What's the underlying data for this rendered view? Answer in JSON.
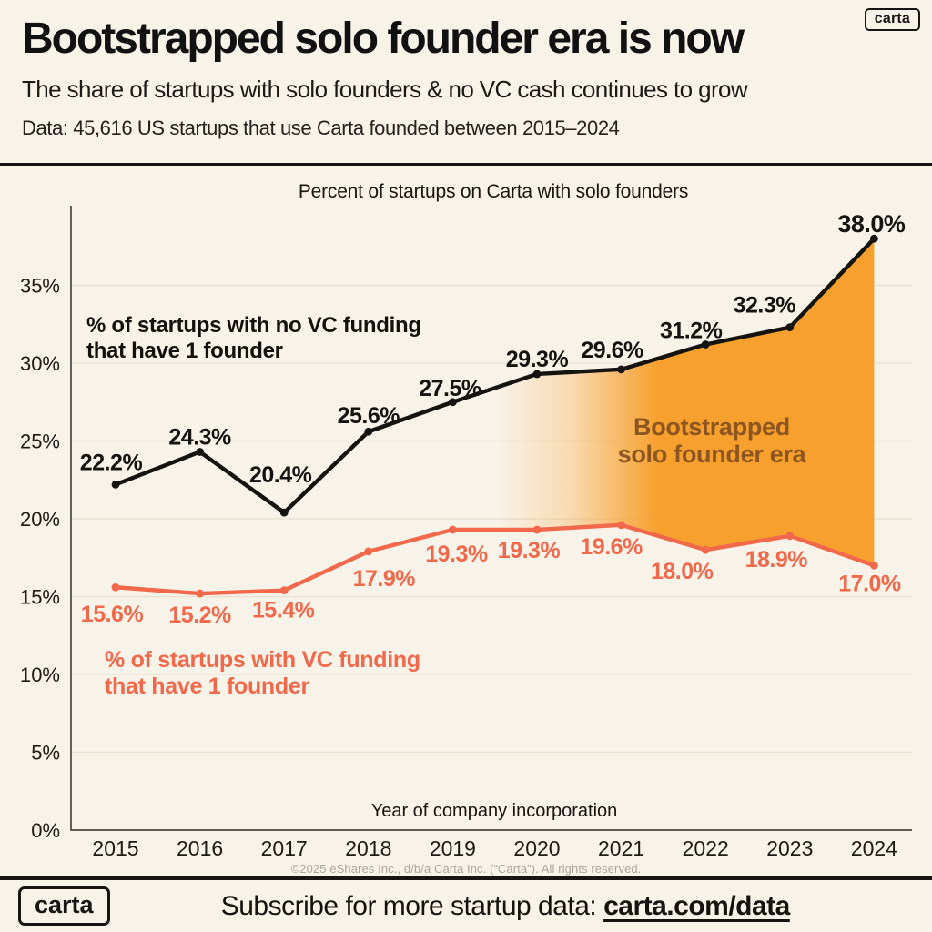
{
  "page": {
    "background": "#F8F3E9",
    "black": "#161511",
    "accent_orange": "#F2684B",
    "fill_orange": "#F7A02E",
    "era_text_color": "#8D5620"
  },
  "header": {
    "logo": "carta",
    "title": "Bootstrapped solo founder era is now",
    "subtitle": "The share of startups with solo founders & no VC cash continues to grow",
    "data_note": "Data: 45,616 US startups that use Carta founded between 2015–2024"
  },
  "chart_data": {
    "type": "line",
    "title": "Percent of startups on Carta with solo founders",
    "xlabel": "Year of company incorporation",
    "categories": [
      "2015",
      "2016",
      "2017",
      "2018",
      "2019",
      "2020",
      "2021",
      "2022",
      "2023",
      "2024"
    ],
    "series": [
      {
        "name": "% of startups with no VC funding that have 1 founder",
        "color": "#141310",
        "values": [
          22.2,
          24.3,
          20.4,
          25.6,
          27.5,
          29.3,
          29.6,
          31.2,
          32.3,
          38.0
        ],
        "labels": [
          "22.2%",
          "24.3%",
          "20.4%",
          "25.6%",
          "27.5%",
          "29.3%",
          "29.6%",
          "31.2%",
          "32.3%",
          "38.0%"
        ]
      },
      {
        "name": "% of startups with VC funding that have 1 founder",
        "color": "#F2684B",
        "values": [
          15.6,
          15.2,
          15.4,
          17.9,
          19.3,
          19.3,
          19.6,
          18.0,
          18.9,
          17.0
        ],
        "labels": [
          "15.6%",
          "15.2%",
          "15.4%",
          "17.9%",
          "19.3%",
          "19.3%",
          "19.6%",
          "18.0%",
          "18.9%",
          "17.0%"
        ]
      }
    ],
    "ylim": [
      0,
      40
    ],
    "yticks": {
      "values": [
        0,
        5,
        10,
        15,
        20,
        25,
        30,
        35
      ],
      "labels": [
        "0%",
        "5%",
        "10%",
        "15%",
        "20%",
        "25%",
        "30%",
        "35%"
      ]
    },
    "grid": true,
    "legend_position": "annotations-on-plot",
    "area_fill_between": "series 0 (top) and series 1 (bottom), orange gradient fading in from 2019 to 2021",
    "area_label": "Bootstrapped\nsolo founder era",
    "annotation_no_vc": "% of startups with no VC funding\nthat have 1 founder",
    "annotation_vc": "% of startups with VC funding\nthat have 1 founder"
  },
  "footer": {
    "copyright": "©2025 eShares Inc., d/b/a Carta Inc. (“Carta”). All rights reserved.",
    "logo": "carta",
    "subscribe_text": "Subscribe for more startup data: ",
    "subscribe_link": "carta.com/data"
  }
}
